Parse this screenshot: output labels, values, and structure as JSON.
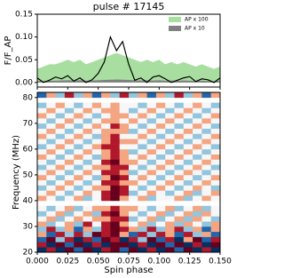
{
  "chart_data": [
    {
      "type": "line",
      "title": "pulse # 17145",
      "ylabel": "F/F_AP",
      "xlim": [
        0,
        0.15
      ],
      "ylim": [
        -0.01,
        0.15
      ],
      "yticks": [
        {
          "value": 0,
          "label": "0.00"
        },
        {
          "value": 0.05,
          "label": "0.05"
        },
        {
          "value": 0.1,
          "label": "0.10"
        },
        {
          "value": 0.15,
          "label": "0.15"
        }
      ],
      "x": [
        0,
        0.005,
        0.01,
        0.015,
        0.02,
        0.025,
        0.03,
        0.035,
        0.04,
        0.045,
        0.05,
        0.055,
        0.06,
        0.065,
        0.07,
        0.075,
        0.08,
        0.085,
        0.09,
        0.095,
        0.1,
        0.105,
        0.11,
        0.115,
        0.12,
        0.125,
        0.13,
        0.135,
        0.14,
        0.145,
        0.15
      ],
      "values": [
        0.01,
        0.0,
        0.005,
        0.012,
        0.008,
        0.015,
        0.003,
        0.01,
        0.0,
        0.006,
        0.02,
        0.045,
        0.1,
        0.07,
        0.09,
        0.04,
        0.005,
        0.01,
        0.0,
        0.012,
        0.015,
        0.008,
        0.0,
        0.005,
        0.01,
        0.013,
        0.002,
        0.008,
        0.006,
        0.0,
        0.01
      ],
      "color": "#000000",
      "series": [
        {
          "name": "AP x 100",
          "color": "#a8dfa0",
          "values": [
            0.03,
            0.035,
            0.04,
            0.04,
            0.045,
            0.05,
            0.045,
            0.05,
            0.04,
            0.045,
            0.05,
            0.055,
            0.06,
            0.065,
            0.06,
            0.055,
            0.05,
            0.045,
            0.05,
            0.045,
            0.05,
            0.04,
            0.045,
            0.04,
            0.045,
            0.04,
            0.035,
            0.04,
            0.035,
            0.03,
            0.035
          ]
        },
        {
          "name": "AP x 10",
          "color": "#808080",
          "values": [
            0.003,
            0.0035,
            0.004,
            0.004,
            0.0045,
            0.005,
            0.0045,
            0.005,
            0.004,
            0.0045,
            0.005,
            0.0055,
            0.006,
            0.0065,
            0.006,
            0.0055,
            0.005,
            0.0045,
            0.005,
            0.0045,
            0.005,
            0.004,
            0.0045,
            0.004,
            0.0045,
            0.004,
            0.0035,
            0.004,
            0.0035,
            0.003,
            0.0035
          ]
        }
      ]
    },
    {
      "type": "heatmap",
      "xlabel": "Spin phase",
      "ylabel": "Frequency (MHz)",
      "colormap": "RdBu_r",
      "xlim": [
        0,
        0.15
      ],
      "ylim": [
        20,
        82
      ],
      "vlim": [
        -3,
        3
      ],
      "xticks": [
        {
          "value": 0,
          "label": "0.000"
        },
        {
          "value": 0.025,
          "label": "0.025"
        },
        {
          "value": 0.05,
          "label": "0.050"
        },
        {
          "value": 0.075,
          "label": "0.075"
        },
        {
          "value": 0.1,
          "label": "0.100"
        },
        {
          "value": 0.125,
          "label": "0.125"
        },
        {
          "value": 0.15,
          "label": "0.150"
        }
      ],
      "yticks": [
        20,
        30,
        40,
        50,
        60,
        70,
        80
      ],
      "x_edges": [
        0,
        0.0075,
        0.015,
        0.0225,
        0.03,
        0.0375,
        0.045,
        0.0525,
        0.06,
        0.0675,
        0.075,
        0.0825,
        0.09,
        0.0975,
        0.105,
        0.1125,
        0.12,
        0.1275,
        0.135,
        0.1425,
        0.15
      ],
      "y_edges": [
        20,
        22,
        24,
        26,
        28,
        30,
        32,
        34,
        36,
        38,
        40,
        42,
        44,
        46,
        48,
        50,
        52,
        54,
        56,
        58,
        60,
        62,
        64,
        66,
        68,
        70,
        72,
        74,
        76,
        78,
        80,
        82
      ],
      "z": [
        [
          -3,
          2,
          -3,
          3,
          -2,
          3,
          -3,
          2,
          3,
          -2,
          3,
          -3,
          2,
          -3,
          3,
          -2,
          3,
          -3,
          2,
          -3
        ],
        [
          2,
          -3,
          3,
          -2,
          3,
          -3,
          2,
          -3,
          3,
          3,
          -3,
          2,
          -3,
          3,
          -2,
          3,
          -3,
          2,
          -3,
          3
        ],
        [
          -2,
          3,
          -1,
          2,
          -3,
          2,
          -2,
          3,
          2,
          -3,
          2,
          -1,
          3,
          -2,
          2,
          -3,
          1,
          3,
          -2,
          2
        ],
        [
          1,
          -2,
          2,
          -1,
          2,
          -1,
          3,
          2,
          3,
          1,
          -2,
          2,
          -1,
          2,
          1,
          -2,
          2,
          -1,
          1,
          -2
        ],
        [
          -1,
          2,
          -1,
          1,
          -2,
          1,
          -1,
          2,
          3,
          2,
          1,
          -1,
          2,
          -1,
          1,
          2,
          -1,
          1,
          -2,
          1
        ],
        [
          1,
          -1,
          0,
          1,
          -1,
          2,
          0,
          2,
          3,
          1,
          0,
          1,
          -1,
          0,
          1,
          -1,
          1,
          0,
          -1,
          1
        ],
        [
          0,
          1,
          -1,
          0,
          1,
          0,
          1,
          1,
          2,
          2,
          -1,
          0,
          1,
          -1,
          0,
          1,
          -1,
          1,
          0,
          -1
        ],
        [
          -1,
          0,
          1,
          -1,
          0,
          1,
          -1,
          2,
          3,
          1,
          0,
          -1,
          0,
          1,
          -1,
          0,
          1,
          -1,
          1,
          0
        ],
        [
          0,
          -1,
          0,
          1,
          -1,
          0,
          1,
          1,
          2,
          1,
          1,
          0,
          -1,
          0,
          1,
          -1,
          0,
          1,
          -1,
          0
        ],
        [
          null,
          null,
          null,
          null,
          null,
          null,
          null,
          null,
          null,
          null,
          null,
          null,
          null,
          null,
          null,
          null,
          null,
          null,
          null,
          null
        ],
        [
          1,
          0,
          -1,
          0,
          1,
          -1,
          0,
          2,
          3,
          1,
          0,
          1,
          -1,
          0,
          0,
          1,
          -1,
          0,
          1,
          0
        ],
        [
          0,
          1,
          0,
          -1,
          0,
          1,
          0,
          2,
          3,
          2,
          -1,
          0,
          1,
          0,
          -1,
          0,
          1,
          -1,
          0,
          1
        ],
        [
          -1,
          0,
          1,
          0,
          -1,
          0,
          1,
          1,
          3,
          2,
          0,
          -1,
          0,
          1,
          0,
          -1,
          0,
          1,
          0,
          -1
        ],
        [
          0,
          -1,
          0,
          1,
          0,
          -1,
          0,
          2,
          2,
          1,
          1,
          0,
          -1,
          0,
          1,
          0,
          -1,
          0,
          1,
          0
        ],
        [
          1,
          0,
          -1,
          0,
          1,
          0,
          -1,
          1,
          3,
          2,
          0,
          1,
          0,
          -1,
          0,
          1,
          0,
          -1,
          0,
          1
        ],
        [
          0,
          1,
          0,
          -1,
          0,
          1,
          0,
          2,
          2,
          1,
          -1,
          0,
          1,
          0,
          -1,
          0,
          1,
          0,
          -1,
          0
        ],
        [
          -1,
          0,
          1,
          0,
          -1,
          0,
          1,
          1,
          2,
          2,
          0,
          -1,
          0,
          1,
          0,
          -1,
          0,
          1,
          0,
          -1
        ],
        [
          0,
          -1,
          0,
          1,
          0,
          -1,
          0,
          2,
          3,
          1,
          1,
          0,
          -1,
          0,
          1,
          0,
          -1,
          0,
          1,
          0
        ],
        [
          1,
          0,
          -1,
          0,
          1,
          0,
          -1,
          1,
          2,
          1,
          0,
          1,
          0,
          -1,
          0,
          1,
          0,
          -1,
          0,
          1
        ],
        [
          0,
          1,
          0,
          -1,
          0,
          1,
          0,
          1,
          2,
          1,
          -1,
          0,
          1,
          0,
          -1,
          0,
          1,
          0,
          -1,
          0
        ],
        [
          -1,
          0,
          1,
          0,
          -1,
          0,
          1,
          2,
          2,
          0,
          0,
          -1,
          0,
          1,
          0,
          -1,
          0,
          1,
          0,
          -1
        ],
        [
          0,
          -1,
          0,
          1,
          0,
          -1,
          0,
          1,
          2,
          1,
          1,
          0,
          -1,
          0,
          1,
          0,
          -1,
          0,
          1,
          0
        ],
        [
          1,
          0,
          -1,
          0,
          1,
          0,
          -1,
          1,
          2,
          0,
          0,
          1,
          0,
          -1,
          0,
          1,
          0,
          -1,
          0,
          1
        ],
        [
          0,
          1,
          0,
          -1,
          0,
          1,
          0,
          1,
          1,
          1,
          -1,
          0,
          1,
          0,
          -1,
          0,
          1,
          0,
          -1,
          0
        ],
        [
          -1,
          0,
          1,
          0,
          -1,
          0,
          1,
          0,
          2,
          1,
          0,
          -1,
          0,
          1,
          0,
          -1,
          0,
          1,
          0,
          -1
        ],
        [
          0,
          -1,
          0,
          1,
          0,
          -1,
          0,
          1,
          1,
          0,
          1,
          0,
          -1,
          0,
          1,
          0,
          -1,
          0,
          1,
          0
        ],
        [
          1,
          0,
          -1,
          0,
          1,
          0,
          -1,
          0,
          1,
          1,
          0,
          1,
          0,
          -1,
          0,
          1,
          0,
          -1,
          0,
          1
        ],
        [
          0,
          1,
          0,
          -1,
          0,
          1,
          0,
          1,
          1,
          0,
          -1,
          0,
          1,
          0,
          -1,
          0,
          1,
          0,
          -1,
          0
        ],
        [
          -1,
          0,
          1,
          0,
          -1,
          0,
          1,
          0,
          1,
          0,
          0,
          -1,
          0,
          1,
          0,
          -1,
          0,
          1,
          0,
          -1
        ],
        [
          null,
          null,
          null,
          null,
          null,
          null,
          null,
          null,
          null,
          null,
          null,
          null,
          null,
          null,
          null,
          null,
          null,
          null,
          null,
          null
        ],
        [
          -2,
          1,
          -1,
          2,
          -1,
          1,
          -2,
          1,
          -1,
          2,
          -1,
          1,
          -2,
          1,
          -1,
          2,
          -1,
          1,
          -2,
          1
        ]
      ]
    }
  ]
}
